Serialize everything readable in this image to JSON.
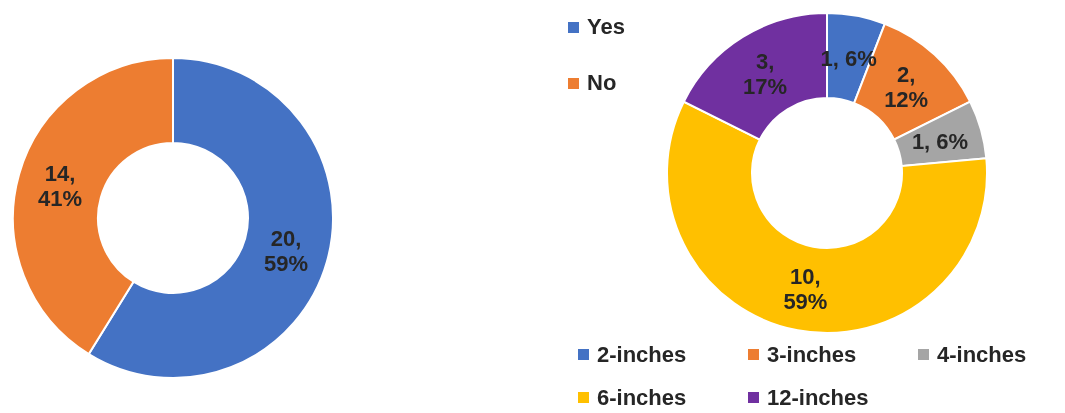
{
  "chart_data": [
    {
      "type": "donut",
      "categories": [
        "Yes",
        "No"
      ],
      "values": [
        20,
        14
      ],
      "colors": [
        "#4472c4",
        "#ed7d31"
      ],
      "value_labels": [
        "20, 59%",
        "14, 41%"
      ],
      "legend": "right"
    },
    {
      "type": "donut",
      "categories": [
        "2-inches",
        "3-inches",
        "4-inches",
        "6-inches",
        "12-inches"
      ],
      "values": [
        1,
        2,
        1,
        10,
        3
      ],
      "colors": [
        "#4472c4",
        "#ed7d31",
        "#a5a5a5",
        "#ffc000",
        "#7030a0"
      ],
      "value_labels": [
        "1, 6%",
        "2, 12%",
        "1, 6%",
        "10, 59%",
        "3, 17%"
      ],
      "legend": "bottom"
    }
  ]
}
